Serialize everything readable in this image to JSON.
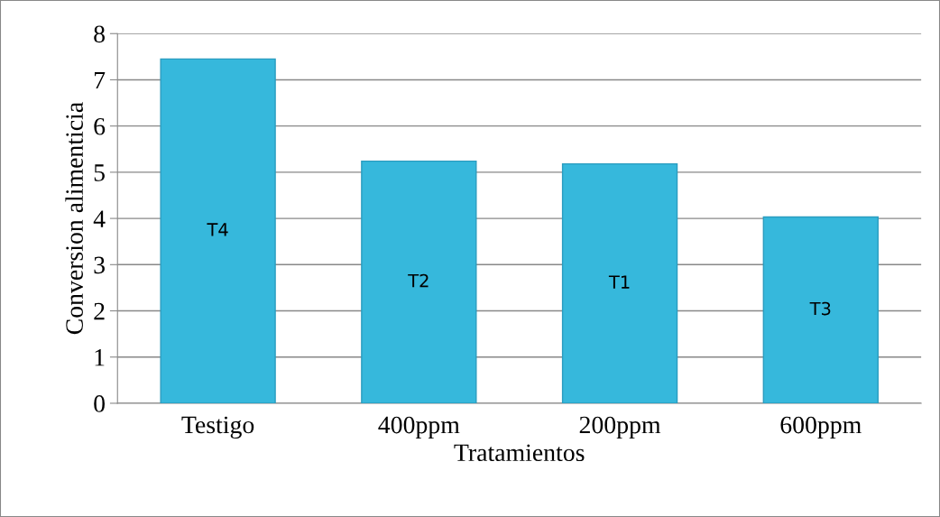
{
  "chart_data": {
    "type": "bar",
    "xlabel": "Tratamientos",
    "ylabel": "Conversion alimenticia",
    "categories": [
      "Testigo",
      "400ppm",
      "200ppm",
      "600ppm"
    ],
    "values": [
      7.45,
      5.24,
      5.18,
      4.03
    ],
    "color": "#36b8dc",
    "ylim": [
      0,
      8
    ],
    "yticks": [
      0,
      1,
      2,
      3,
      4,
      5,
      6,
      7,
      8
    ],
    "grid": "y",
    "annotations": [
      "T4",
      "T2",
      "T1",
      "T3"
    ]
  }
}
